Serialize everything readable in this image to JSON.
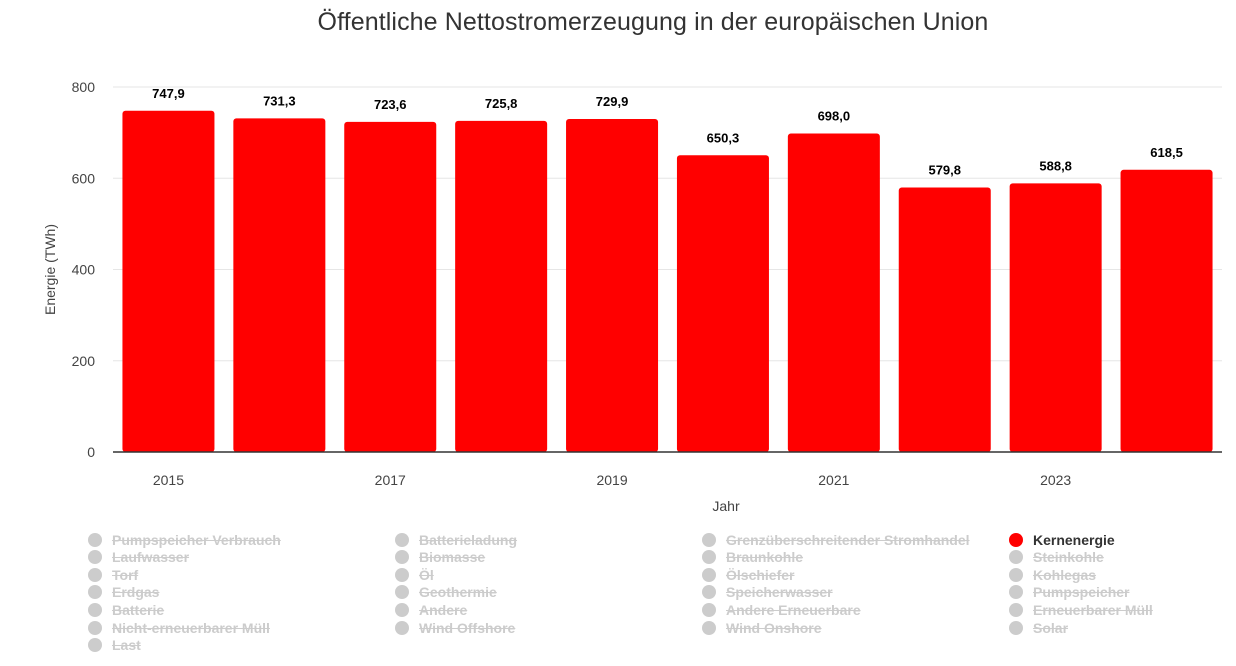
{
  "chart_data": {
    "type": "bar",
    "title": "Öffentliche Nettostromerzeugung in der europäischen Union",
    "xlabel": "Jahr",
    "ylabel": "Energie (TWh)",
    "ylim": [
      0,
      800
    ],
    "yticks": [
      "0",
      "200",
      "400",
      "600",
      "800"
    ],
    "ytick_values": [
      0,
      200,
      400,
      600,
      800
    ],
    "categories": [
      "2015",
      "2016",
      "2017",
      "2018",
      "2019",
      "2020",
      "2021",
      "2022",
      "2023",
      "2024"
    ],
    "xtick_labels": [
      "2015",
      "",
      "2017",
      "",
      "2019",
      "",
      "2021",
      "",
      "2023",
      ""
    ],
    "series": [
      {
        "name": "Kernenergie",
        "color": "#ff0000",
        "values": [
          747.9,
          731.3,
          723.6,
          725.8,
          729.9,
          650.3,
          698.0,
          579.8,
          588.8,
          618.5
        ],
        "labels": [
          "747,9",
          "731,3",
          "723,6",
          "725,8",
          "729,9",
          "650,3",
          "698,0",
          "579,8",
          "588,8",
          "618,5"
        ]
      }
    ]
  },
  "legend": {
    "columns": [
      [
        {
          "label": "Pumpspeicher Verbrauch",
          "active": false
        },
        {
          "label": "Laufwasser",
          "active": false
        },
        {
          "label": "Torf",
          "active": false
        },
        {
          "label": "Erdgas",
          "active": false
        },
        {
          "label": "Batterie",
          "active": false
        },
        {
          "label": "Nicht-erneuerbarer Müll",
          "active": false
        },
        {
          "label": "Last",
          "active": false
        }
      ],
      [
        {
          "label": "Batterieladung",
          "active": false
        },
        {
          "label": "Biomasse",
          "active": false
        },
        {
          "label": "Öl",
          "active": false
        },
        {
          "label": "Geothermie",
          "active": false
        },
        {
          "label": "Andere",
          "active": false
        },
        {
          "label": "Wind Offshore",
          "active": false
        }
      ],
      [
        {
          "label": "Grenzüberschreitender Stromhandel",
          "active": false
        },
        {
          "label": "Braunkohle",
          "active": false
        },
        {
          "label": "Ölschiefer",
          "active": false
        },
        {
          "label": "Speicherwasser",
          "active": false
        },
        {
          "label": "Andere Erneuerbare",
          "active": false
        },
        {
          "label": "Wind Onshore",
          "active": false
        }
      ],
      [
        {
          "label": "Kernenergie",
          "active": true
        },
        {
          "label": "Steinkohle",
          "active": false
        },
        {
          "label": "Kohlegas",
          "active": false
        },
        {
          "label": "Pumpspeicher",
          "active": false
        },
        {
          "label": "Erneuerbarer Müll",
          "active": false
        },
        {
          "label": "Solar",
          "active": false
        }
      ]
    ],
    "inactive_color": "#cccccc",
    "active_color": "#ff0000"
  }
}
